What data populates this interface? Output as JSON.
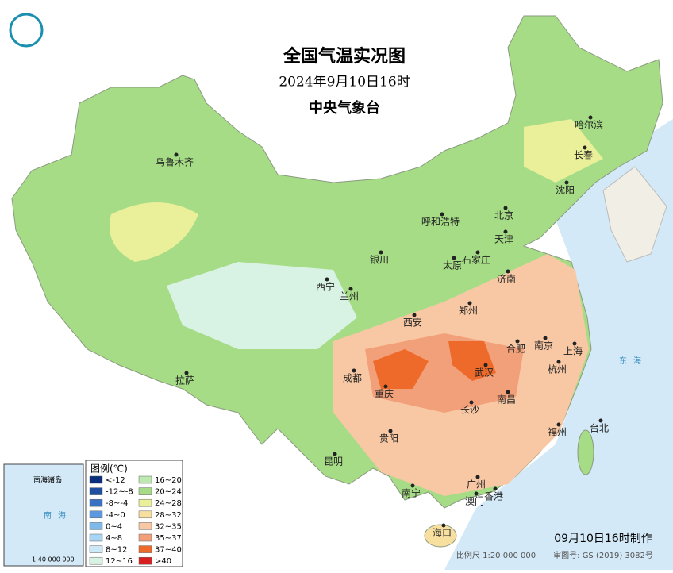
{
  "header": {
    "title": "全国气温实况图",
    "subtitle": "2024年9月10日16时",
    "org": "中央气象台"
  },
  "cities": [
    "乌鲁木齐",
    "哈尔滨",
    "长春",
    "沈阳",
    "呼和浩特",
    "北京",
    "天津",
    "银川",
    "石家庄",
    "太原",
    "济南",
    "西宁",
    "兰州",
    "西安",
    "郑州",
    "合肥",
    "南京",
    "上海",
    "成都",
    "武汉",
    "杭州",
    "拉萨",
    "重庆",
    "长沙",
    "南昌",
    "贵阳",
    "福州",
    "台北",
    "昆明",
    "广州",
    "南宁",
    "澳门",
    "香港",
    "海口"
  ],
  "seas": [
    "东海",
    "南海"
  ],
  "legend": {
    "title": "图例(℃)",
    "items": [
      {
        "label": "<-12",
        "color": "#0b2f7a"
      },
      {
        "label": "-12~-8",
        "color": "#1f4f9e"
      },
      {
        "label": "-8~-4",
        "color": "#3a72c2"
      },
      {
        "label": "-4~0",
        "color": "#5b98dd"
      },
      {
        "label": "0~4",
        "color": "#7fb9ea"
      },
      {
        "label": "4~8",
        "color": "#a9d4f3"
      },
      {
        "label": "8~12",
        "color": "#cde8f6"
      },
      {
        "label": "12~16",
        "color": "#d8f2e3"
      },
      {
        "label": "16~20",
        "color": "#bde9b0"
      },
      {
        "label": "20~24",
        "color": "#a6dc86"
      },
      {
        "label": "24~28",
        "color": "#eaf09a"
      },
      {
        "label": "28~32",
        "color": "#f7dfa0"
      },
      {
        "label": "32~35",
        "color": "#f8c8a4"
      },
      {
        "label": "35~37",
        "color": "#f2a07a"
      },
      {
        "label": "37~40",
        "color": "#ee6a2a"
      },
      {
        "label": ">40",
        "color": "#d81f1f"
      }
    ]
  },
  "inset": {
    "title": "南海诸岛",
    "scale": "1:40 000 000"
  },
  "footer": {
    "made": "09月10日16时制作",
    "scale": "比例尺 1:20 000 000",
    "approval": "审图号: GS (2019) 3082号"
  }
}
